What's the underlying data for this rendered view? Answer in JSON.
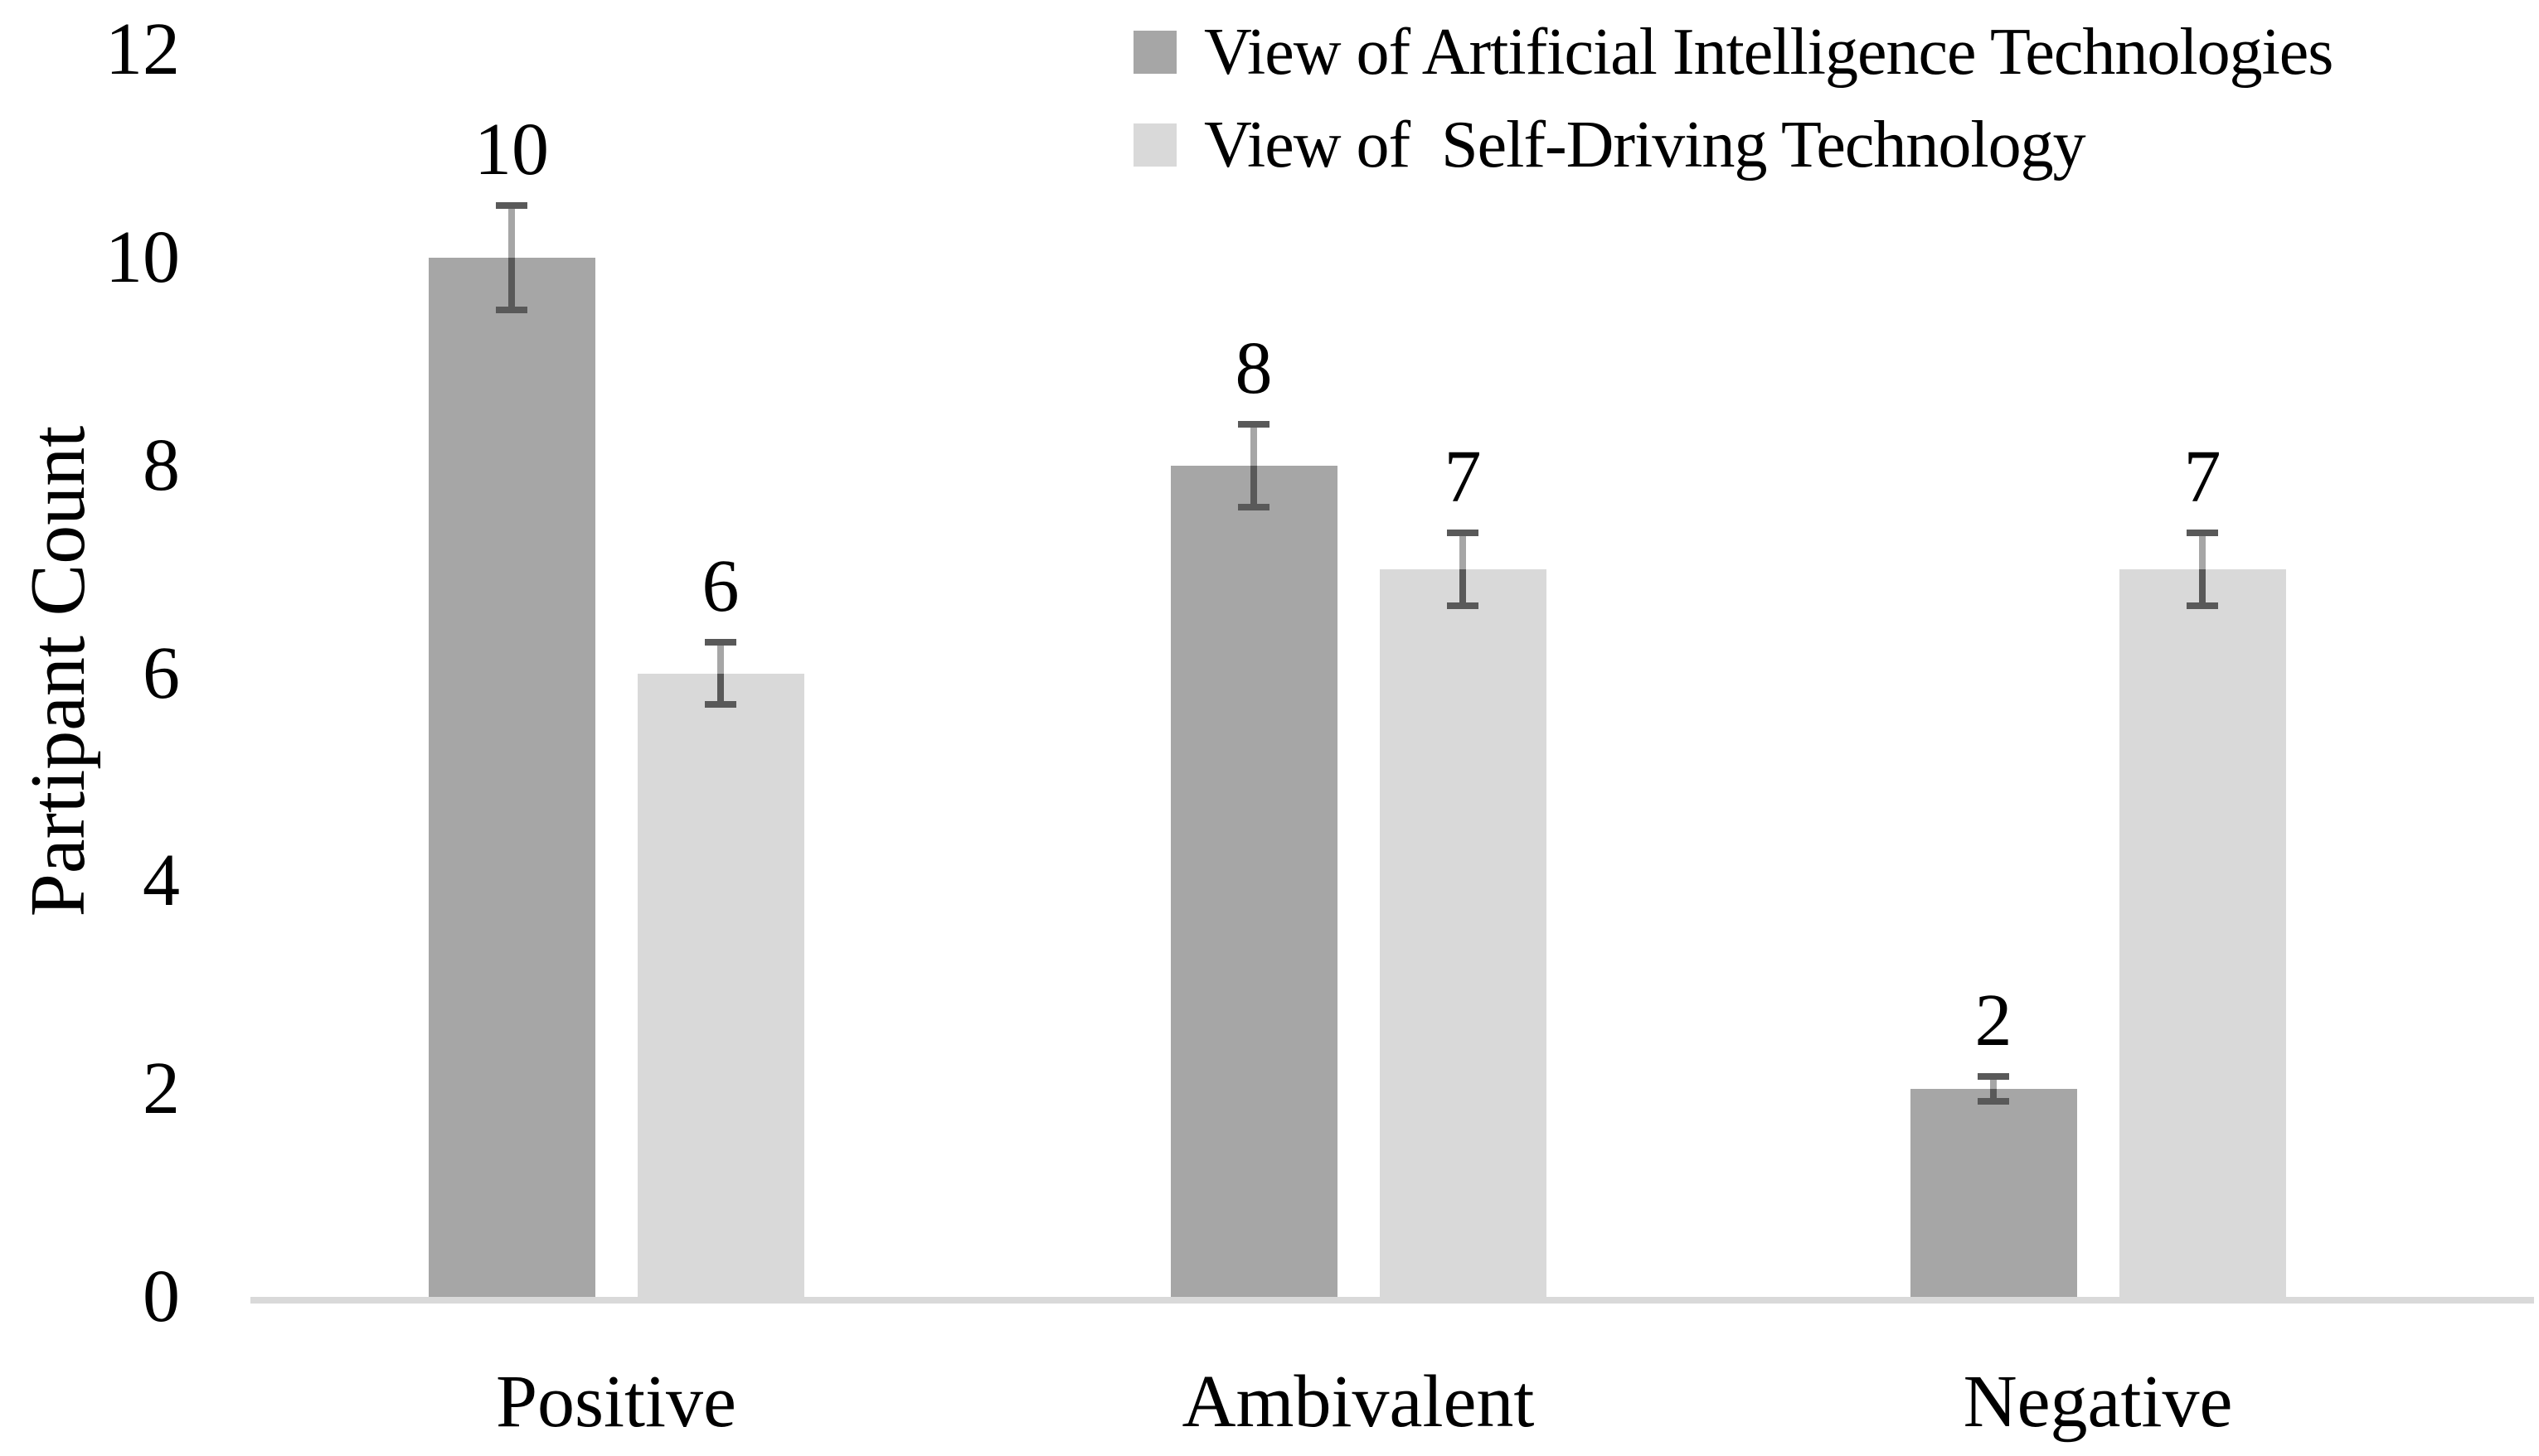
{
  "chart_data": {
    "type": "bar",
    "title": "",
    "categories": [
      "Positive",
      "Ambivalent",
      "Negative"
    ],
    "series": [
      {
        "name": "View of Artificial Intelligence Technologies",
        "color": "#a6a6a6",
        "values": [
          10,
          8,
          2
        ],
        "errors": [
          0.5,
          0.4,
          0.12
        ]
      },
      {
        "name": "View of  Self-Driving Technology",
        "color": "#d9d9d9",
        "values": [
          6,
          7,
          7
        ],
        "errors": [
          0.3,
          0.35,
          0.35
        ]
      }
    ],
    "ylabel": "Partipant Count",
    "xlabel": "",
    "yticks": [
      0,
      2,
      4,
      6,
      8,
      10,
      12
    ],
    "ylim": [
      0,
      12
    ],
    "grid": false,
    "legend_position": "top-right",
    "data_labels_visible": true,
    "colors": {
      "error_bar_dark": "#595959",
      "error_bar_light": "#a6a6a6",
      "axis_line": "#d9d9d9",
      "text": "#000000",
      "background": "#ffffff"
    }
  }
}
